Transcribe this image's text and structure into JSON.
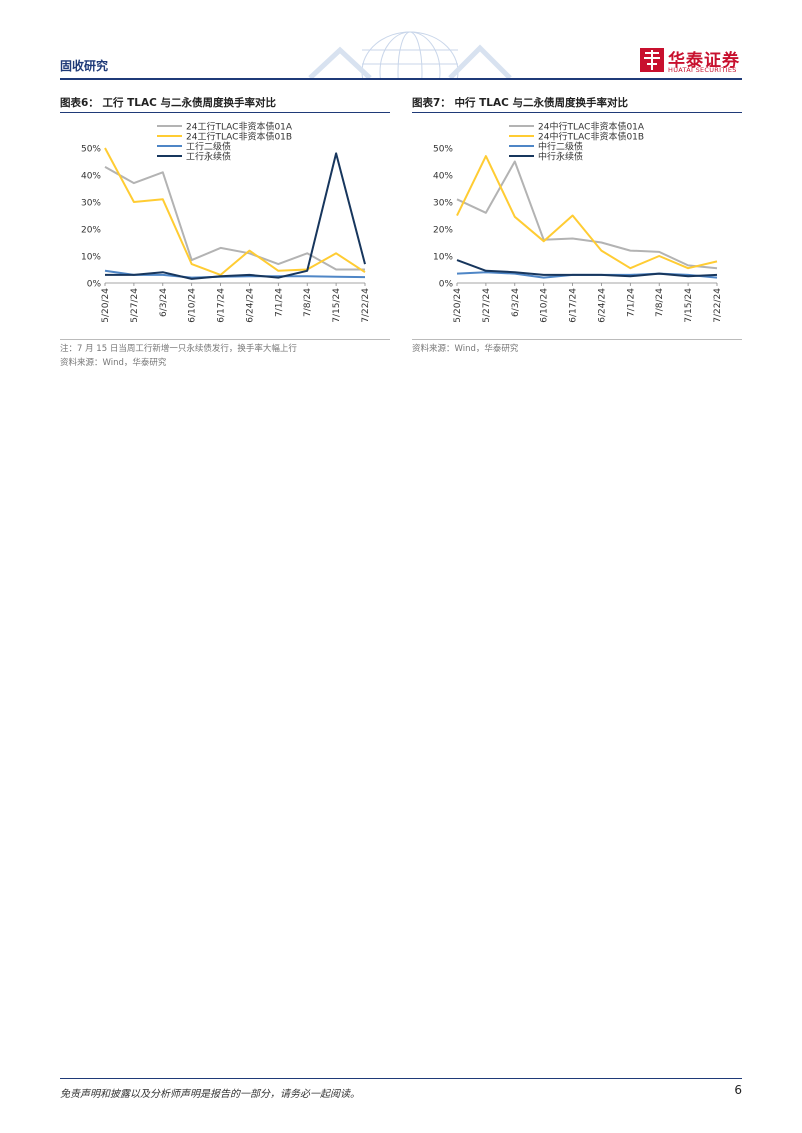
{
  "header": {
    "section": "固收研究"
  },
  "logo": {
    "cn": "华泰证券",
    "en": "HUATAI SECURITIES"
  },
  "colors": {
    "brand_blue": "#1f3a78",
    "brand_red": "#c8102e",
    "series_gray": "#b3b3b3",
    "series_yellow": "#ffcc33",
    "series_lightblue": "#4f86c6",
    "series_navy": "#17365d"
  },
  "chart_data": [
    {
      "type": "line",
      "title": "图表6：  工行 TLAC 与二永债周度换手率对比",
      "x": [
        "5/20/24",
        "5/27/24",
        "6/3/24",
        "6/10/24",
        "6/17/24",
        "6/24/24",
        "7/1/24",
        "7/8/24",
        "7/15/24",
        "7/22/24"
      ],
      "ylim": [
        0,
        50
      ],
      "yticks": [
        "0%",
        "10%",
        "20%",
        "30%",
        "40%",
        "50%"
      ],
      "legend_position": "top",
      "series": [
        {
          "name": "24工行TLAC非资本债01A",
          "color": "#b3b3b3",
          "values": [
            43,
            37,
            41,
            8.5,
            13,
            11,
            7,
            11,
            5,
            5
          ]
        },
        {
          "name": "24工行TLAC非资本债01B",
          "color": "#ffcc33",
          "values": [
            50,
            30,
            31,
            7,
            3,
            12,
            4.5,
            5,
            11,
            4
          ]
        },
        {
          "name": "工行二级债",
          "color": "#4f86c6",
          "values": [
            4.5,
            3,
            3,
            2,
            2.3,
            2.5,
            2.5,
            2.5,
            2.3,
            2.2
          ]
        },
        {
          "name": "工行永续债",
          "color": "#17365d",
          "values": [
            3,
            3,
            4,
            1.5,
            2.5,
            3,
            2,
            4.5,
            48,
            7
          ]
        }
      ],
      "notes": [
        "注：7 月 15 日当周工行新增一只永续债发行，换手率大幅上行",
        "资料来源：Wind，华泰研究"
      ]
    },
    {
      "type": "line",
      "title": "图表7：  中行 TLAC 与二永债周度换手率对比",
      "x": [
        "5/20/24",
        "5/27/24",
        "6/3/24",
        "6/10/24",
        "6/17/24",
        "6/24/24",
        "7/1/24",
        "7/8/24",
        "7/15/24",
        "7/22/24"
      ],
      "ylim": [
        0,
        50
      ],
      "yticks": [
        "0%",
        "10%",
        "20%",
        "30%",
        "40%",
        "50%"
      ],
      "legend_position": "top",
      "series": [
        {
          "name": "24中行TLAC非资本债01A",
          "color": "#b3b3b3",
          "values": [
            31,
            26,
            45,
            16,
            16.5,
            15,
            12,
            11.5,
            6.5,
            5.5
          ]
        },
        {
          "name": "24中行TLAC非资本债01B",
          "color": "#ffcc33",
          "values": [
            25,
            47,
            24.5,
            15.5,
            25,
            12,
            5.5,
            10,
            5.5,
            8
          ]
        },
        {
          "name": "中行二级债",
          "color": "#4f86c6",
          "values": [
            3.5,
            4,
            3.5,
            2,
            3,
            3,
            3,
            3.5,
            3,
            2
          ]
        },
        {
          "name": "中行永续债",
          "color": "#17365d",
          "values": [
            8.5,
            4.5,
            4,
            3,
            3,
            3,
            2.5,
            3.5,
            2.5,
            3
          ]
        }
      ],
      "notes": [
        "资料来源：Wind，华泰研究"
      ]
    }
  ],
  "footer": {
    "disclaimer": "免责声明和披露以及分析师声明是报告的一部分，请务必一起阅读。",
    "page": "6"
  }
}
